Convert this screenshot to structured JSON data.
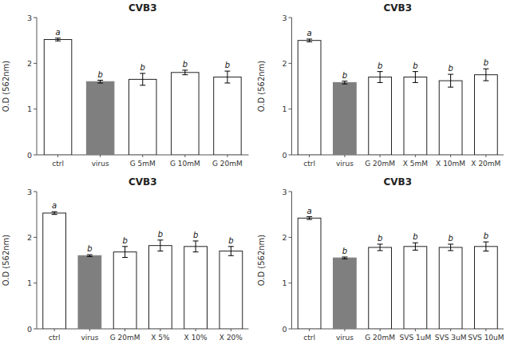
{
  "chart_data": [
    {
      "type": "bar",
      "title": "CVB3",
      "ylabel": "O.D (562nm)",
      "categories": [
        "ctrl",
        "virus",
        "G 5mM",
        "G 10mM",
        "G 20mM"
      ],
      "values": [
        2.52,
        1.6,
        1.65,
        1.8,
        1.7
      ],
      "errors": [
        0.03,
        0.03,
        0.13,
        0.05,
        0.13
      ],
      "annotations": [
        "a",
        "b",
        "b",
        "b",
        "b"
      ],
      "colors": [
        "white",
        "#7f7f7f",
        "white",
        "white",
        "white"
      ],
      "ylim": [
        0,
        3
      ],
      "yticks": [
        0,
        1,
        2,
        3
      ],
      "grid": false
    },
    {
      "type": "bar",
      "title": "CVB3",
      "ylabel": "O.D (562nm)",
      "categories": [
        "ctrl",
        "virus",
        "G 20mM",
        "X 5mM",
        "X 10mM",
        "X 20mM"
      ],
      "values": [
        2.5,
        1.58,
        1.7,
        1.7,
        1.62,
        1.75
      ],
      "errors": [
        0.03,
        0.03,
        0.12,
        0.12,
        0.14,
        0.13
      ],
      "annotations": [
        "a",
        "b",
        "b",
        "b",
        "b",
        "b"
      ],
      "colors": [
        "white",
        "#7f7f7f",
        "white",
        "white",
        "white",
        "white"
      ],
      "ylim": [
        0,
        3
      ],
      "yticks": [
        0,
        1,
        2,
        3
      ],
      "grid": false
    },
    {
      "type": "bar",
      "title": "CVB3",
      "ylabel": "O.D (562nm)",
      "categories": [
        "ctrl",
        "virus",
        "G 20mM",
        "X 5%",
        "X 10%",
        "X 20%"
      ],
      "values": [
        2.53,
        1.6,
        1.68,
        1.82,
        1.8,
        1.7
      ],
      "errors": [
        0.03,
        0.02,
        0.12,
        0.12,
        0.12,
        0.1
      ],
      "annotations": [
        "a",
        "b",
        "b",
        "b",
        "b",
        "b"
      ],
      "colors": [
        "white",
        "#7f7f7f",
        "white",
        "white",
        "white",
        "white"
      ],
      "ylim": [
        0,
        3
      ],
      "yticks": [
        0,
        1,
        2,
        3
      ],
      "grid": false
    },
    {
      "type": "bar",
      "title": "CVB3",
      "ylabel": "O.D (562nm)",
      "categories": [
        "ctrl",
        "virus",
        "G 20mM",
        "SVS 1uM",
        "SVS 3uM",
        "SVS 10uM"
      ],
      "values": [
        2.42,
        1.55,
        1.78,
        1.8,
        1.78,
        1.8
      ],
      "errors": [
        0.03,
        0.02,
        0.07,
        0.08,
        0.07,
        0.1
      ],
      "annotations": [
        "a",
        "b",
        "b",
        "b",
        "b",
        "b"
      ],
      "colors": [
        "white",
        "#7f7f7f",
        "white",
        "white",
        "white",
        "white"
      ],
      "ylim": [
        0,
        3
      ],
      "yticks": [
        0,
        1,
        2,
        3
      ],
      "grid": false
    }
  ]
}
